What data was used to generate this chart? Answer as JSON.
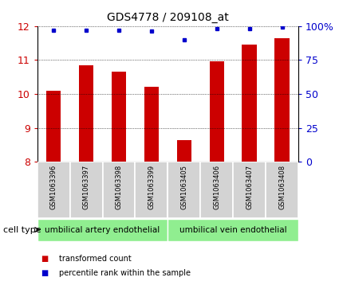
{
  "title": "GDS4778 / 209108_at",
  "samples": [
    "GSM1063396",
    "GSM1063397",
    "GSM1063398",
    "GSM1063399",
    "GSM1063405",
    "GSM1063406",
    "GSM1063407",
    "GSM1063408"
  ],
  "transformed_counts": [
    10.1,
    10.85,
    10.65,
    10.2,
    8.65,
    10.95,
    11.45,
    11.65
  ],
  "percentile_ranks": [
    97,
    97,
    97,
    96,
    90,
    98,
    98,
    99
  ],
  "ylim": [
    8,
    12
  ],
  "yticks": [
    8,
    9,
    10,
    11,
    12
  ],
  "right_yticks": [
    0,
    25,
    50,
    75,
    100
  ],
  "right_ylabels": [
    "0",
    "25",
    "50",
    "75",
    "100%"
  ],
  "bar_color": "#cc0000",
  "dot_color": "#0000cc",
  "bar_width": 0.45,
  "groups": [
    {
      "label": "umbilical artery endothelial",
      "start": 0,
      "end": 4,
      "color": "#90ee90"
    },
    {
      "label": "umbilical vein endothelial",
      "start": 4,
      "end": 8,
      "color": "#90ee90"
    }
  ],
  "cell_type_label": "cell type",
  "legend_items": [
    {
      "color": "#cc0000",
      "label": "transformed count"
    },
    {
      "color": "#0000cc",
      "label": "percentile rank within the sample"
    }
  ],
  "grid_color": "#000000",
  "bg_color": "#ffffff",
  "tick_label_color_left": "#cc0000",
  "tick_label_color_right": "#0000cc",
  "sample_box_color": "#d3d3d3"
}
